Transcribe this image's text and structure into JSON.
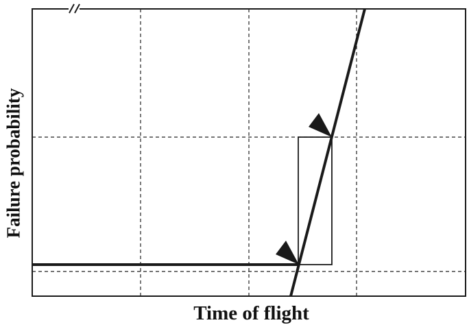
{
  "axes": {
    "x_label": "Time of flight",
    "y_label": "Failure probability"
  },
  "axis_break_mark": "//",
  "colors": {
    "line": "#1a1a1a",
    "grid": "#222222",
    "background": "#ffffff"
  },
  "icons": [
    "arrowhead-icon",
    "arrowhead-icon"
  ]
}
